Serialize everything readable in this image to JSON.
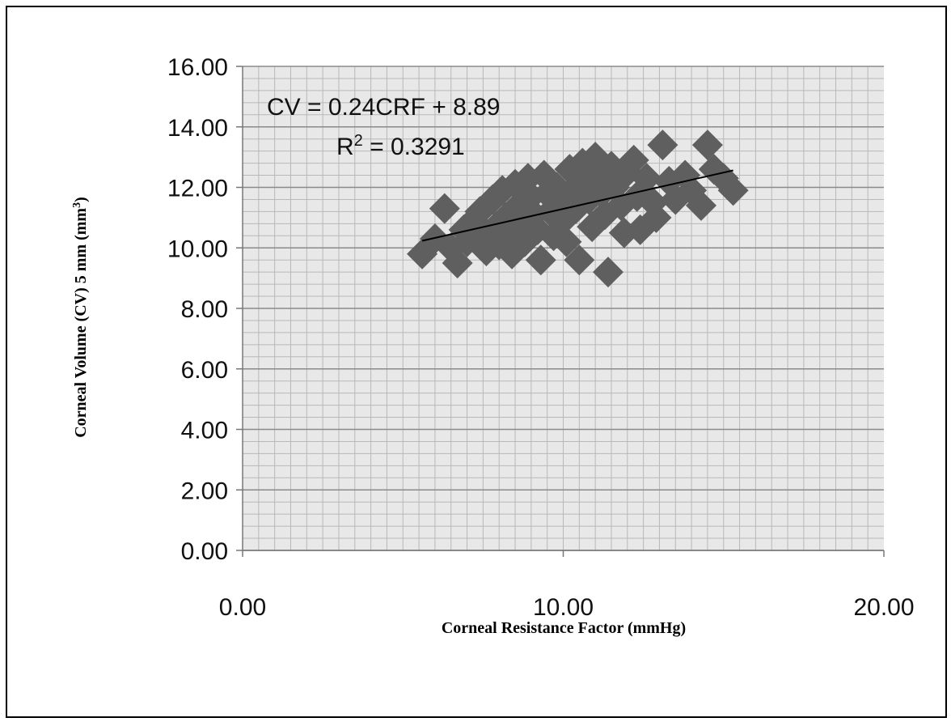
{
  "chart_data": {
    "type": "scatter",
    "title": "",
    "xlabel": "Corneal Resistance Factor (mmHg)",
    "ylabel_main": "Corneal Volume  (CV) 5 mm (mm",
    "ylabel_sup": "3",
    "ylabel_close": ")",
    "xlim": [
      0,
      20
    ],
    "ylim": [
      0,
      16
    ],
    "xticks": [
      0,
      10,
      20
    ],
    "xtick_labels": [
      "0.00",
      "10.00",
      "20.00"
    ],
    "yticks": [
      0,
      2,
      4,
      6,
      8,
      10,
      12,
      14,
      16
    ],
    "ytick_labels": [
      "0.00",
      "2.00",
      "4.00",
      "6.00",
      "8.00",
      "10.00",
      "12.00",
      "14.00",
      "16.00"
    ],
    "minor_grid_step_y": 0.4,
    "vertical_grid_step_x": 0.5,
    "grid": true,
    "legend": "none",
    "colors": {
      "marker": "#5f5f5f",
      "plot_bg": "#e8e8e8",
      "major_grid": "#8a8a8a",
      "minor_grid": "#b8b8b8",
      "trendline": "#000000"
    },
    "trendline": {
      "slope": 0.24,
      "intercept": 8.89,
      "x_range": [
        5.6,
        15.3
      ]
    },
    "annotations": {
      "equation": "CV = 0.24CRF + 8.89",
      "r2_prefix": "R",
      "r2_sup": "2",
      "r2_value": " = 0.3291"
    },
    "series": [
      {
        "marker": "diamond",
        "points": [
          [
            5.6,
            9.8
          ],
          [
            6.0,
            10.3
          ],
          [
            6.3,
            11.3
          ],
          [
            6.5,
            10.0
          ],
          [
            6.7,
            9.5
          ],
          [
            6.9,
            10.6
          ],
          [
            7.0,
            10.2
          ],
          [
            7.2,
            10.9
          ],
          [
            7.4,
            11.2
          ],
          [
            7.5,
            10.4
          ],
          [
            7.6,
            9.9
          ],
          [
            7.8,
            11.6
          ],
          [
            7.9,
            10.7
          ],
          [
            8.0,
            10.1
          ],
          [
            8.1,
            11.9
          ],
          [
            8.2,
            11.0
          ],
          [
            8.3,
            10.5
          ],
          [
            8.4,
            9.8
          ],
          [
            8.5,
            12.1
          ],
          [
            8.6,
            11.4
          ],
          [
            8.7,
            10.8
          ],
          [
            8.8,
            10.2
          ],
          [
            8.9,
            12.3
          ],
          [
            9.0,
            11.7
          ],
          [
            9.1,
            11.1
          ],
          [
            9.2,
            10.6
          ],
          [
            9.3,
            9.6
          ],
          [
            9.4,
            12.4
          ],
          [
            9.5,
            11.8
          ],
          [
            9.6,
            11.2
          ],
          [
            9.7,
            10.4
          ],
          [
            9.8,
            12.0
          ],
          [
            9.9,
            11.5
          ],
          [
            10.0,
            10.9
          ],
          [
            10.1,
            10.2
          ],
          [
            10.2,
            12.6
          ],
          [
            10.3,
            11.9
          ],
          [
            10.4,
            11.3
          ],
          [
            10.5,
            9.6
          ],
          [
            10.6,
            12.8
          ],
          [
            10.7,
            12.2
          ],
          [
            10.8,
            11.6
          ],
          [
            10.9,
            10.7
          ],
          [
            11.0,
            13.0
          ],
          [
            11.1,
            12.4
          ],
          [
            11.2,
            11.8
          ],
          [
            11.3,
            11.1
          ],
          [
            11.4,
            9.2
          ],
          [
            11.5,
            12.7
          ],
          [
            11.6,
            12.0
          ],
          [
            11.8,
            11.4
          ],
          [
            11.9,
            10.5
          ],
          [
            12.0,
            12.5
          ],
          [
            12.2,
            12.9
          ],
          [
            12.3,
            11.7
          ],
          [
            12.4,
            10.6
          ],
          [
            12.6,
            12.3
          ],
          [
            12.8,
            11.5
          ],
          [
            12.9,
            11.0
          ],
          [
            13.1,
            13.4
          ],
          [
            13.3,
            12.2
          ],
          [
            13.5,
            11.6
          ],
          [
            13.8,
            12.4
          ],
          [
            14.0,
            11.9
          ],
          [
            14.3,
            11.4
          ],
          [
            14.5,
            13.4
          ],
          [
            14.7,
            12.6
          ],
          [
            15.0,
            12.3
          ],
          [
            15.3,
            11.9
          ]
        ]
      }
    ]
  }
}
